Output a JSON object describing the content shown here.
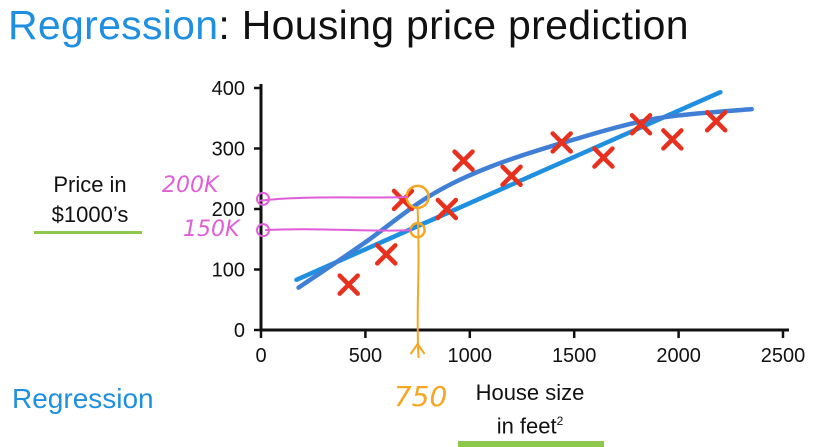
{
  "title": {
    "keyword": "Regression",
    "rest": ": Housing price prediction"
  },
  "y_axis_label": {
    "line1": "Price in",
    "line2": "$1000’s"
  },
  "x_axis_label": {
    "line1": "House size",
    "line2": "in feet",
    "superscript": "2"
  },
  "bottom_left_label": "Regression",
  "annotations": {
    "price_high": "200K",
    "price_low": "150K",
    "input_size": "750",
    "input_x": 750,
    "high_y": 220,
    "low_y": 165
  },
  "colors": {
    "accent_blue": "#1f8fe0",
    "line_blue": "#3f7fd6",
    "marker_red": "#e8301e",
    "annot_magenta": "#e05fd8",
    "annot_orange": "#f5a623",
    "underline_green": "#8cc84b"
  },
  "chart_data": {
    "type": "scatter",
    "xlim": [
      0,
      2500
    ],
    "ylim": [
      0,
      400
    ],
    "x_ticks": [
      0,
      500,
      1000,
      1500,
      2000,
      2500
    ],
    "y_ticks": [
      0,
      100,
      200,
      300,
      400
    ],
    "points": [
      {
        "x": 420,
        "y": 75
      },
      {
        "x": 600,
        "y": 125
      },
      {
        "x": 680,
        "y": 215
      },
      {
        "x": 890,
        "y": 200
      },
      {
        "x": 970,
        "y": 280
      },
      {
        "x": 1200,
        "y": 255
      },
      {
        "x": 1440,
        "y": 310
      },
      {
        "x": 1640,
        "y": 285
      },
      {
        "x": 1820,
        "y": 340
      },
      {
        "x": 1970,
        "y": 315
      },
      {
        "x": 2180,
        "y": 345
      }
    ],
    "fits": [
      {
        "kind": "straight line",
        "points": [
          [
            170,
            83
          ],
          [
            2200,
            393
          ]
        ]
      },
      {
        "kind": "curve",
        "points": [
          [
            180,
            70
          ],
          [
            500,
            145
          ],
          [
            800,
            220
          ],
          [
            1100,
            270
          ],
          [
            1500,
            315
          ],
          [
            1900,
            350
          ],
          [
            2350,
            365
          ]
        ]
      }
    ]
  }
}
